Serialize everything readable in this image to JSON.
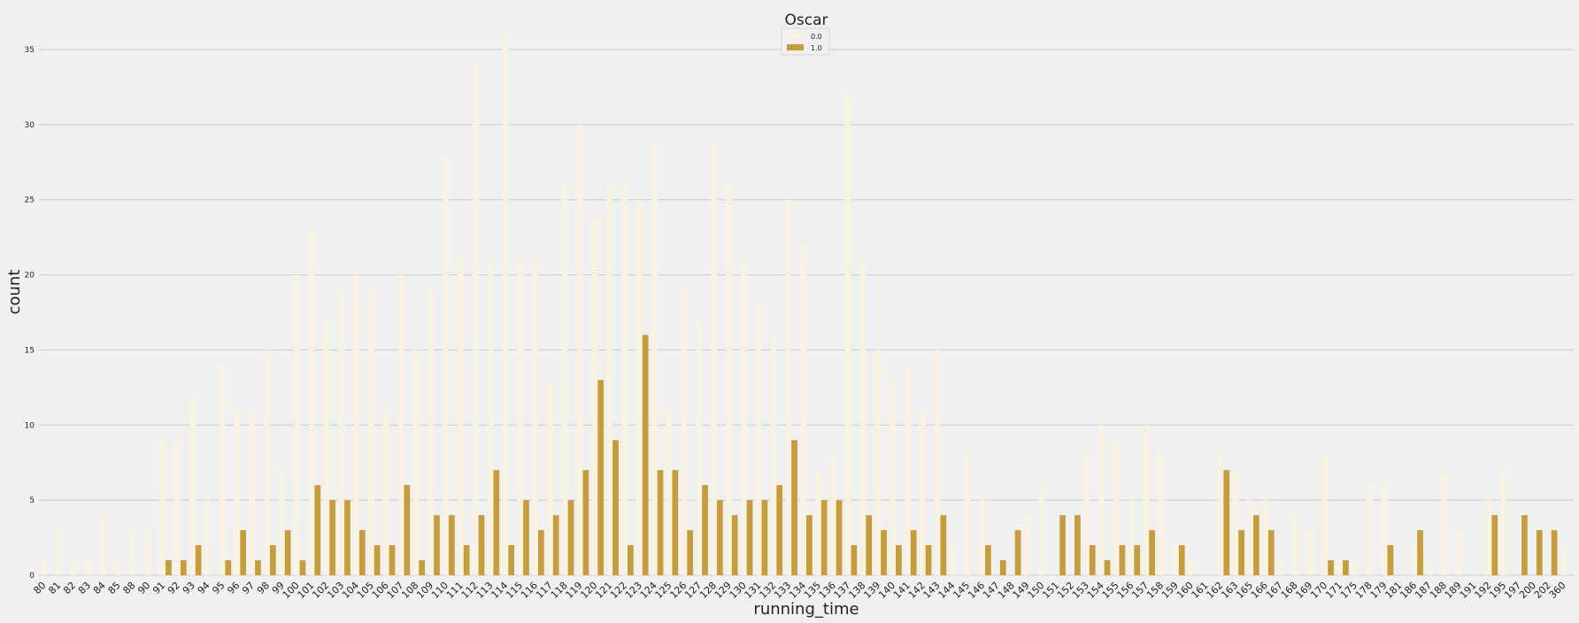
{
  "chart_data": {
    "type": "bar",
    "xlabel": "running_time",
    "ylabel": "count",
    "ylim": [
      0,
      36.5
    ],
    "yticks": [
      0,
      5,
      10,
      15,
      20,
      25,
      30,
      35
    ],
    "grid": "horizontal",
    "legend": {
      "title": "Oscar",
      "position": "top-center"
    },
    "categories": [
      "80",
      "81",
      "82",
      "83",
      "84",
      "85",
      "88",
      "90",
      "91",
      "92",
      "93",
      "94",
      "95",
      "96",
      "97",
      "98",
      "99",
      "100",
      "101",
      "102",
      "103",
      "104",
      "105",
      "106",
      "107",
      "108",
      "109",
      "110",
      "111",
      "112",
      "113",
      "114",
      "115",
      "116",
      "117",
      "118",
      "119",
      "120",
      "121",
      "122",
      "123",
      "124",
      "125",
      "126",
      "127",
      "128",
      "129",
      "130",
      "131",
      "132",
      "133",
      "134",
      "135",
      "136",
      "137",
      "138",
      "139",
      "140",
      "141",
      "142",
      "143",
      "144",
      "145",
      "146",
      "147",
      "148",
      "149",
      "150",
      "151",
      "152",
      "153",
      "154",
      "155",
      "156",
      "157",
      "158",
      "159",
      "160",
      "161",
      "162",
      "163",
      "165",
      "166",
      "167",
      "168",
      "169",
      "170",
      "171",
      "175",
      "178",
      "179",
      "181",
      "186",
      "187",
      "188",
      "189",
      "191",
      "192",
      "195",
      "197",
      "200",
      "202",
      "360"
    ],
    "series": [
      {
        "name": "0.0",
        "color": "#f8f2e2",
        "values": [
          1,
          3,
          1,
          1,
          4,
          1,
          3,
          3,
          9,
          9,
          12,
          5,
          14,
          11,
          11,
          15,
          7,
          20,
          23,
          17,
          19,
          20,
          19,
          11,
          20,
          15,
          19,
          28,
          21,
          34,
          21,
          36,
          21,
          21,
          13,
          26,
          30,
          24,
          26,
          26,
          25,
          29,
          11,
          19,
          17,
          29,
          26,
          21,
          18,
          16,
          25,
          22,
          7,
          8,
          32,
          21,
          15,
          13,
          14,
          11,
          15,
          2,
          8,
          5,
          0,
          0,
          4,
          6,
          0,
          0,
          8,
          10,
          9,
          5,
          10,
          8,
          2,
          1,
          0,
          8,
          7,
          5,
          5,
          1,
          4,
          3,
          8,
          1,
          1,
          6,
          6,
          0,
          2,
          1,
          7,
          3,
          0,
          5,
          7,
          0,
          0,
          0,
          2
        ]
      },
      {
        "name": "1.0",
        "color": "#c59d3d",
        "values": [
          0,
          0,
          0,
          0,
          0,
          0,
          0,
          0,
          1,
          1,
          2,
          0,
          1,
          3,
          1,
          2,
          3,
          1,
          6,
          5,
          5,
          3,
          2,
          2,
          6,
          1,
          4,
          4,
          2,
          4,
          7,
          2,
          5,
          3,
          4,
          5,
          7,
          13,
          9,
          2,
          16,
          7,
          7,
          3,
          6,
          5,
          4,
          5,
          5,
          6,
          9,
          4,
          5,
          5,
          2,
          4,
          3,
          2,
          3,
          2,
          4,
          0,
          0,
          2,
          1,
          3,
          0,
          0,
          4,
          4,
          2,
          1,
          2,
          2,
          3,
          0,
          2,
          0,
          0,
          7,
          3,
          4,
          3,
          0,
          0,
          0,
          1,
          1,
          0,
          0,
          2,
          0,
          3,
          0,
          0,
          0,
          0,
          4,
          0,
          4,
          3,
          3,
          0
        ]
      }
    ]
  }
}
